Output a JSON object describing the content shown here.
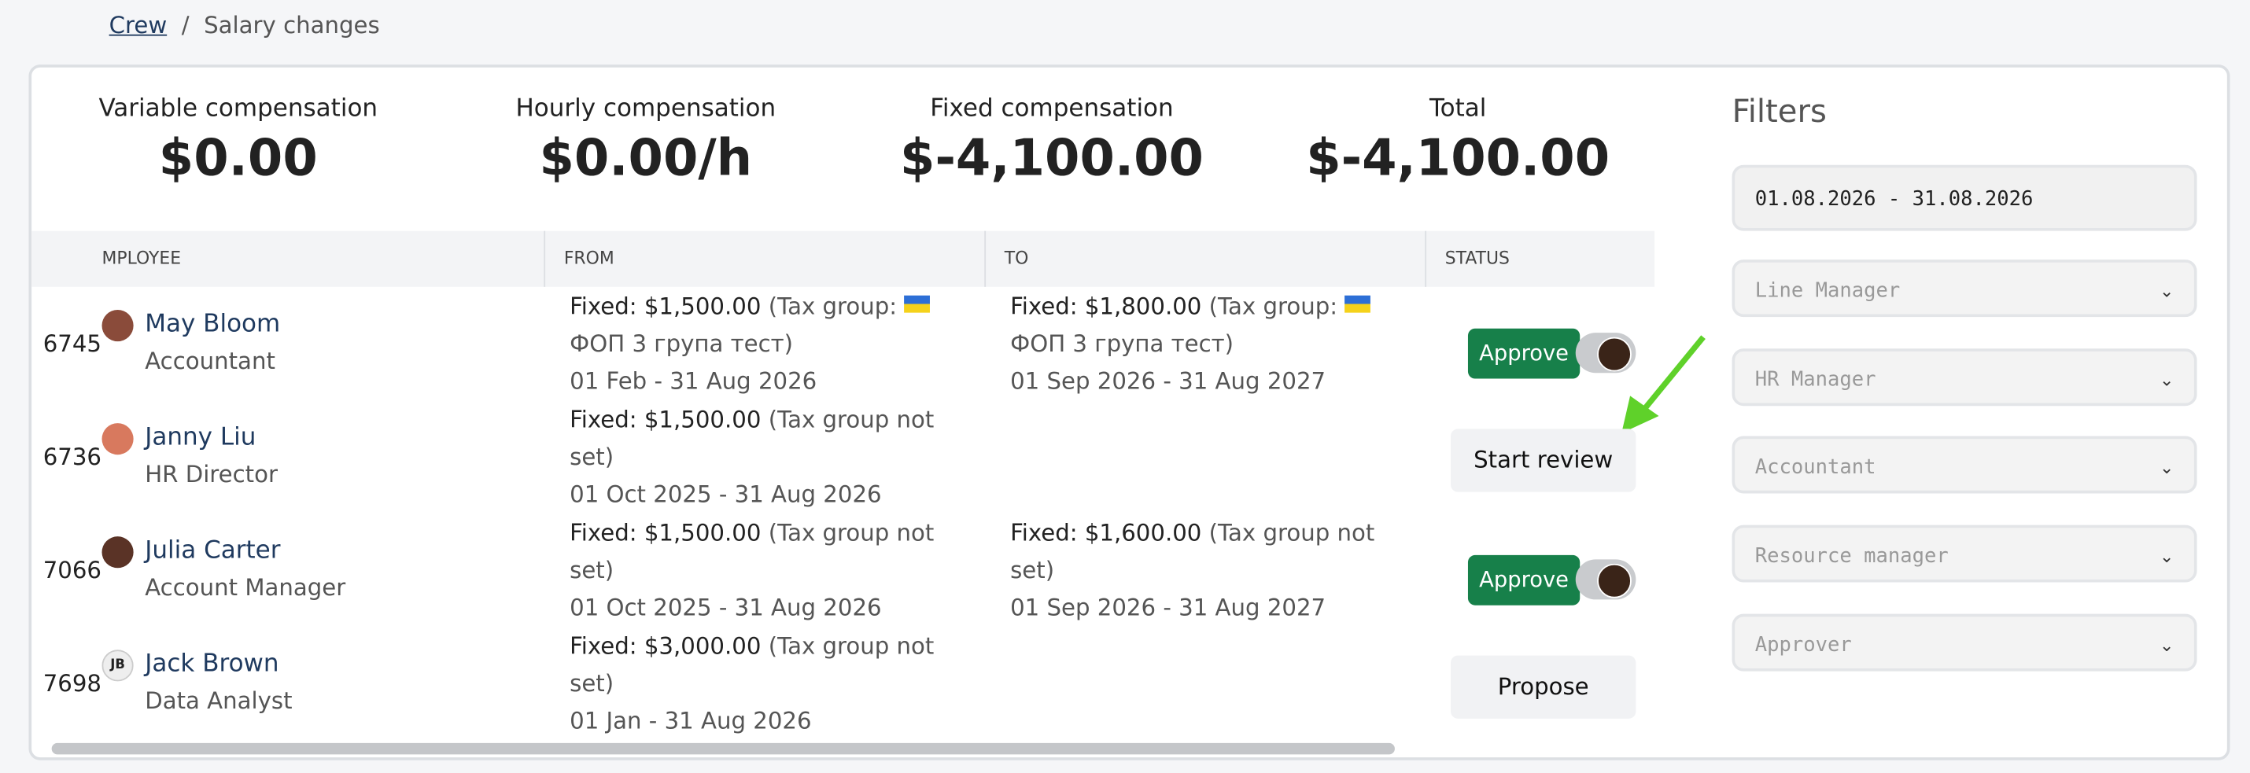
{
  "breadcrumb": {
    "link": "Crew",
    "current": "Salary changes"
  },
  "summary": [
    {
      "label": "Variable compensation",
      "value": "$0.00"
    },
    {
      "label": "Hourly compensation",
      "value": "$0.00/h"
    },
    {
      "label": "Fixed compensation",
      "value": "$-4,100.00"
    },
    {
      "label": "Total",
      "value": "$-4,100.00"
    }
  ],
  "table": {
    "headers": [
      "MPLOYEE",
      "FROM",
      "TO",
      "STATUS"
    ],
    "rows": [
      {
        "id": "6745",
        "name": "May Bloom",
        "role": "Accountant",
        "from": {
          "amount": "Fixed: $1,500.00",
          "note": "(Tax group:",
          "note_after_flag": "ФОП 3 група тест)",
          "period": "01 Feb - 31 Aug 2026"
        },
        "to": {
          "amount": "Fixed: $1,800.00",
          "note": "(Tax group:",
          "note_after_flag": "ФОП 3 група тест)",
          "period": "01 Sep 2026 - 31 Aug 2027"
        },
        "action": "Approve"
      },
      {
        "id": "6736",
        "name": "Janny Liu",
        "role": "HR Director",
        "from": {
          "amount": "Fixed: $1,500.00",
          "note": "(Tax group not set)",
          "period": "01 Oct 2025 - 31 Aug 2026"
        },
        "action": "Start review"
      },
      {
        "id": "7066",
        "name": "Julia Carter",
        "role": "Account Manager",
        "from": {
          "amount": "Fixed: $1,500.00",
          "note": "(Tax group not set)",
          "period": "01 Oct 2025 - 31 Aug 2026"
        },
        "to": {
          "amount": "Fixed: $1,600.00",
          "note": "(Tax group not set)",
          "period": "01 Sep 2026 - 31 Aug 2027"
        },
        "action": "Approve"
      },
      {
        "id": "7698",
        "name": "Jack Brown",
        "initials": "JB",
        "role": "Data Analyst",
        "from": {
          "amount": "Fixed: $3,000.00",
          "note": "(Tax group not set)",
          "period": "01 Jan - 31 Aug 2026"
        },
        "action": "Propose"
      }
    ]
  },
  "filters": {
    "title": "Filters",
    "date_range": "01.08.2026 - 31.08.2026",
    "selects": [
      "Line Manager",
      "HR Manager",
      "Accountant",
      "Resource manager",
      "Approver"
    ]
  }
}
